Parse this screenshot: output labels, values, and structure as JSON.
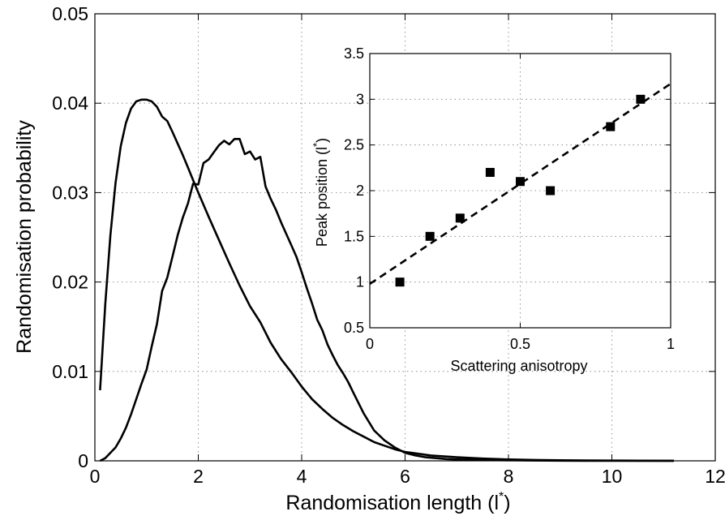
{
  "chart_data": [
    {
      "type": "line",
      "xlabel": "Randomisation length (l",
      "xlabel_sup": "*",
      "xlabel_end": ")",
      "ylabel": "Randomisation probability",
      "xlim": [
        0,
        12
      ],
      "ylim": [
        0,
        0.05
      ],
      "xticks": [
        0,
        2,
        4,
        6,
        8,
        10,
        12
      ],
      "xtick_labels": [
        "0",
        "2",
        "4",
        "6",
        "8",
        "10",
        "12"
      ],
      "yticks": [
        0,
        0.01,
        0.02,
        0.03,
        0.04,
        0.05
      ],
      "ytick_labels": [
        "0",
        "0.01",
        "0.02",
        "0.03",
        "0.04",
        "0.05"
      ],
      "grid": true,
      "series": [
        {
          "x": [
            0.1,
            0.2,
            0.3,
            0.4,
            0.5,
            0.6,
            0.7,
            0.8,
            0.9,
            1.0,
            1.1,
            1.2,
            1.3,
            1.4,
            1.5,
            1.6,
            1.7,
            1.8,
            1.9,
            2.0,
            2.2,
            2.4,
            2.6,
            2.8,
            3.0,
            3.2,
            3.4,
            3.6,
            3.8,
            4.0,
            4.2,
            4.4,
            4.6,
            4.8,
            5.0,
            5.2,
            5.4,
            5.6,
            5.8,
            6.0,
            6.5,
            7.0,
            7.5,
            8.0,
            8.5,
            9.0,
            9.5,
            10.0,
            10.5,
            11.2
          ],
          "y": [
            0.0079,
            0.0175,
            0.0252,
            0.0311,
            0.0352,
            0.0378,
            0.0394,
            0.0402,
            0.0404,
            0.0404,
            0.0402,
            0.0396,
            0.0385,
            0.038,
            0.0368,
            0.0355,
            0.0342,
            0.0328,
            0.0314,
            0.03,
            0.0273,
            0.0247,
            0.0221,
            0.0196,
            0.0173,
            0.0155,
            0.0132,
            0.0114,
            0.0099,
            0.0083,
            0.0069,
            0.0058,
            0.0048,
            0.004,
            0.0033,
            0.0027,
            0.0021,
            0.0017,
            0.0013,
            0.001,
            0.0006,
            0.0004,
            0.00025,
            0.00015,
            0.0001,
            6e-05,
            4e-05,
            3e-05,
            2e-05,
            1e-05
          ]
        },
        {
          "x": [
            0.1,
            0.2,
            0.3,
            0.4,
            0.5,
            0.6,
            0.7,
            0.8,
            0.9,
            1.0,
            1.1,
            1.2,
            1.3,
            1.4,
            1.5,
            1.6,
            1.7,
            1.8,
            1.9,
            2.0,
            2.1,
            2.2,
            2.3,
            2.4,
            2.5,
            2.6,
            2.7,
            2.8,
            2.9,
            3.0,
            3.1,
            3.2,
            3.3,
            3.4,
            3.5,
            3.6,
            3.7,
            3.8,
            3.9,
            4.0,
            4.1,
            4.2,
            4.3,
            4.4,
            4.5,
            4.6,
            4.7,
            4.8,
            4.9,
            5.0,
            5.2,
            5.4,
            5.6,
            5.8,
            6.0,
            6.2,
            6.4,
            6.6,
            6.8,
            7.0,
            7.5,
            8.0,
            8.5,
            9.0,
            9.5,
            10.0,
            10.5,
            11.2
          ],
          "y": [
            0.0,
            0.0003,
            0.0009,
            0.0015,
            0.0025,
            0.0037,
            0.0052,
            0.0069,
            0.0086,
            0.0102,
            0.0128,
            0.0153,
            0.019,
            0.0205,
            0.0228,
            0.0252,
            0.0272,
            0.0288,
            0.031,
            0.0309,
            0.0333,
            0.0337,
            0.0345,
            0.0353,
            0.0358,
            0.0354,
            0.036,
            0.036,
            0.0343,
            0.0346,
            0.0337,
            0.034,
            0.0307,
            0.0293,
            0.0281,
            0.0267,
            0.0254,
            0.0241,
            0.0228,
            0.0211,
            0.0193,
            0.0176,
            0.0158,
            0.0146,
            0.013,
            0.0118,
            0.0107,
            0.0098,
            0.0088,
            0.0076,
            0.0053,
            0.0034,
            0.0023,
            0.0015,
            0.0009,
            0.0006,
            0.0004,
            0.0003,
            0.0002,
            0.00015,
            0.0001,
            6e-05,
            4e-05,
            2e-05,
            1e-05,
            0.0,
            0.0,
            0.0
          ]
        }
      ]
    },
    {
      "type": "scatter",
      "xlabel": "Scattering anisotropy",
      "ylabel": "Peak position (l",
      "ylabel_sup": "*",
      "ylabel_end": ")",
      "xlim": [
        0,
        1
      ],
      "ylim": [
        0.5,
        3.5
      ],
      "xticks": [
        0,
        0.5,
        1
      ],
      "xtick_labels": [
        "0",
        "0.5",
        "1"
      ],
      "yticks": [
        0.5,
        1,
        1.5,
        2,
        2.5,
        3,
        3.5
      ],
      "ytick_labels": [
        "0.5",
        "1",
        "1.5",
        "2",
        "2.5",
        "3",
        "3.5"
      ],
      "grid": true,
      "points": {
        "x": [
          0.1,
          0.2,
          0.3,
          0.4,
          0.5,
          0.6,
          0.8,
          0.9
        ],
        "y": [
          1.0,
          1.5,
          1.7,
          2.2,
          2.1,
          2.0,
          2.7,
          3.0
        ]
      },
      "fit_line": {
        "x": [
          0,
          1
        ],
        "y": [
          0.98,
          3.17
        ]
      }
    }
  ]
}
